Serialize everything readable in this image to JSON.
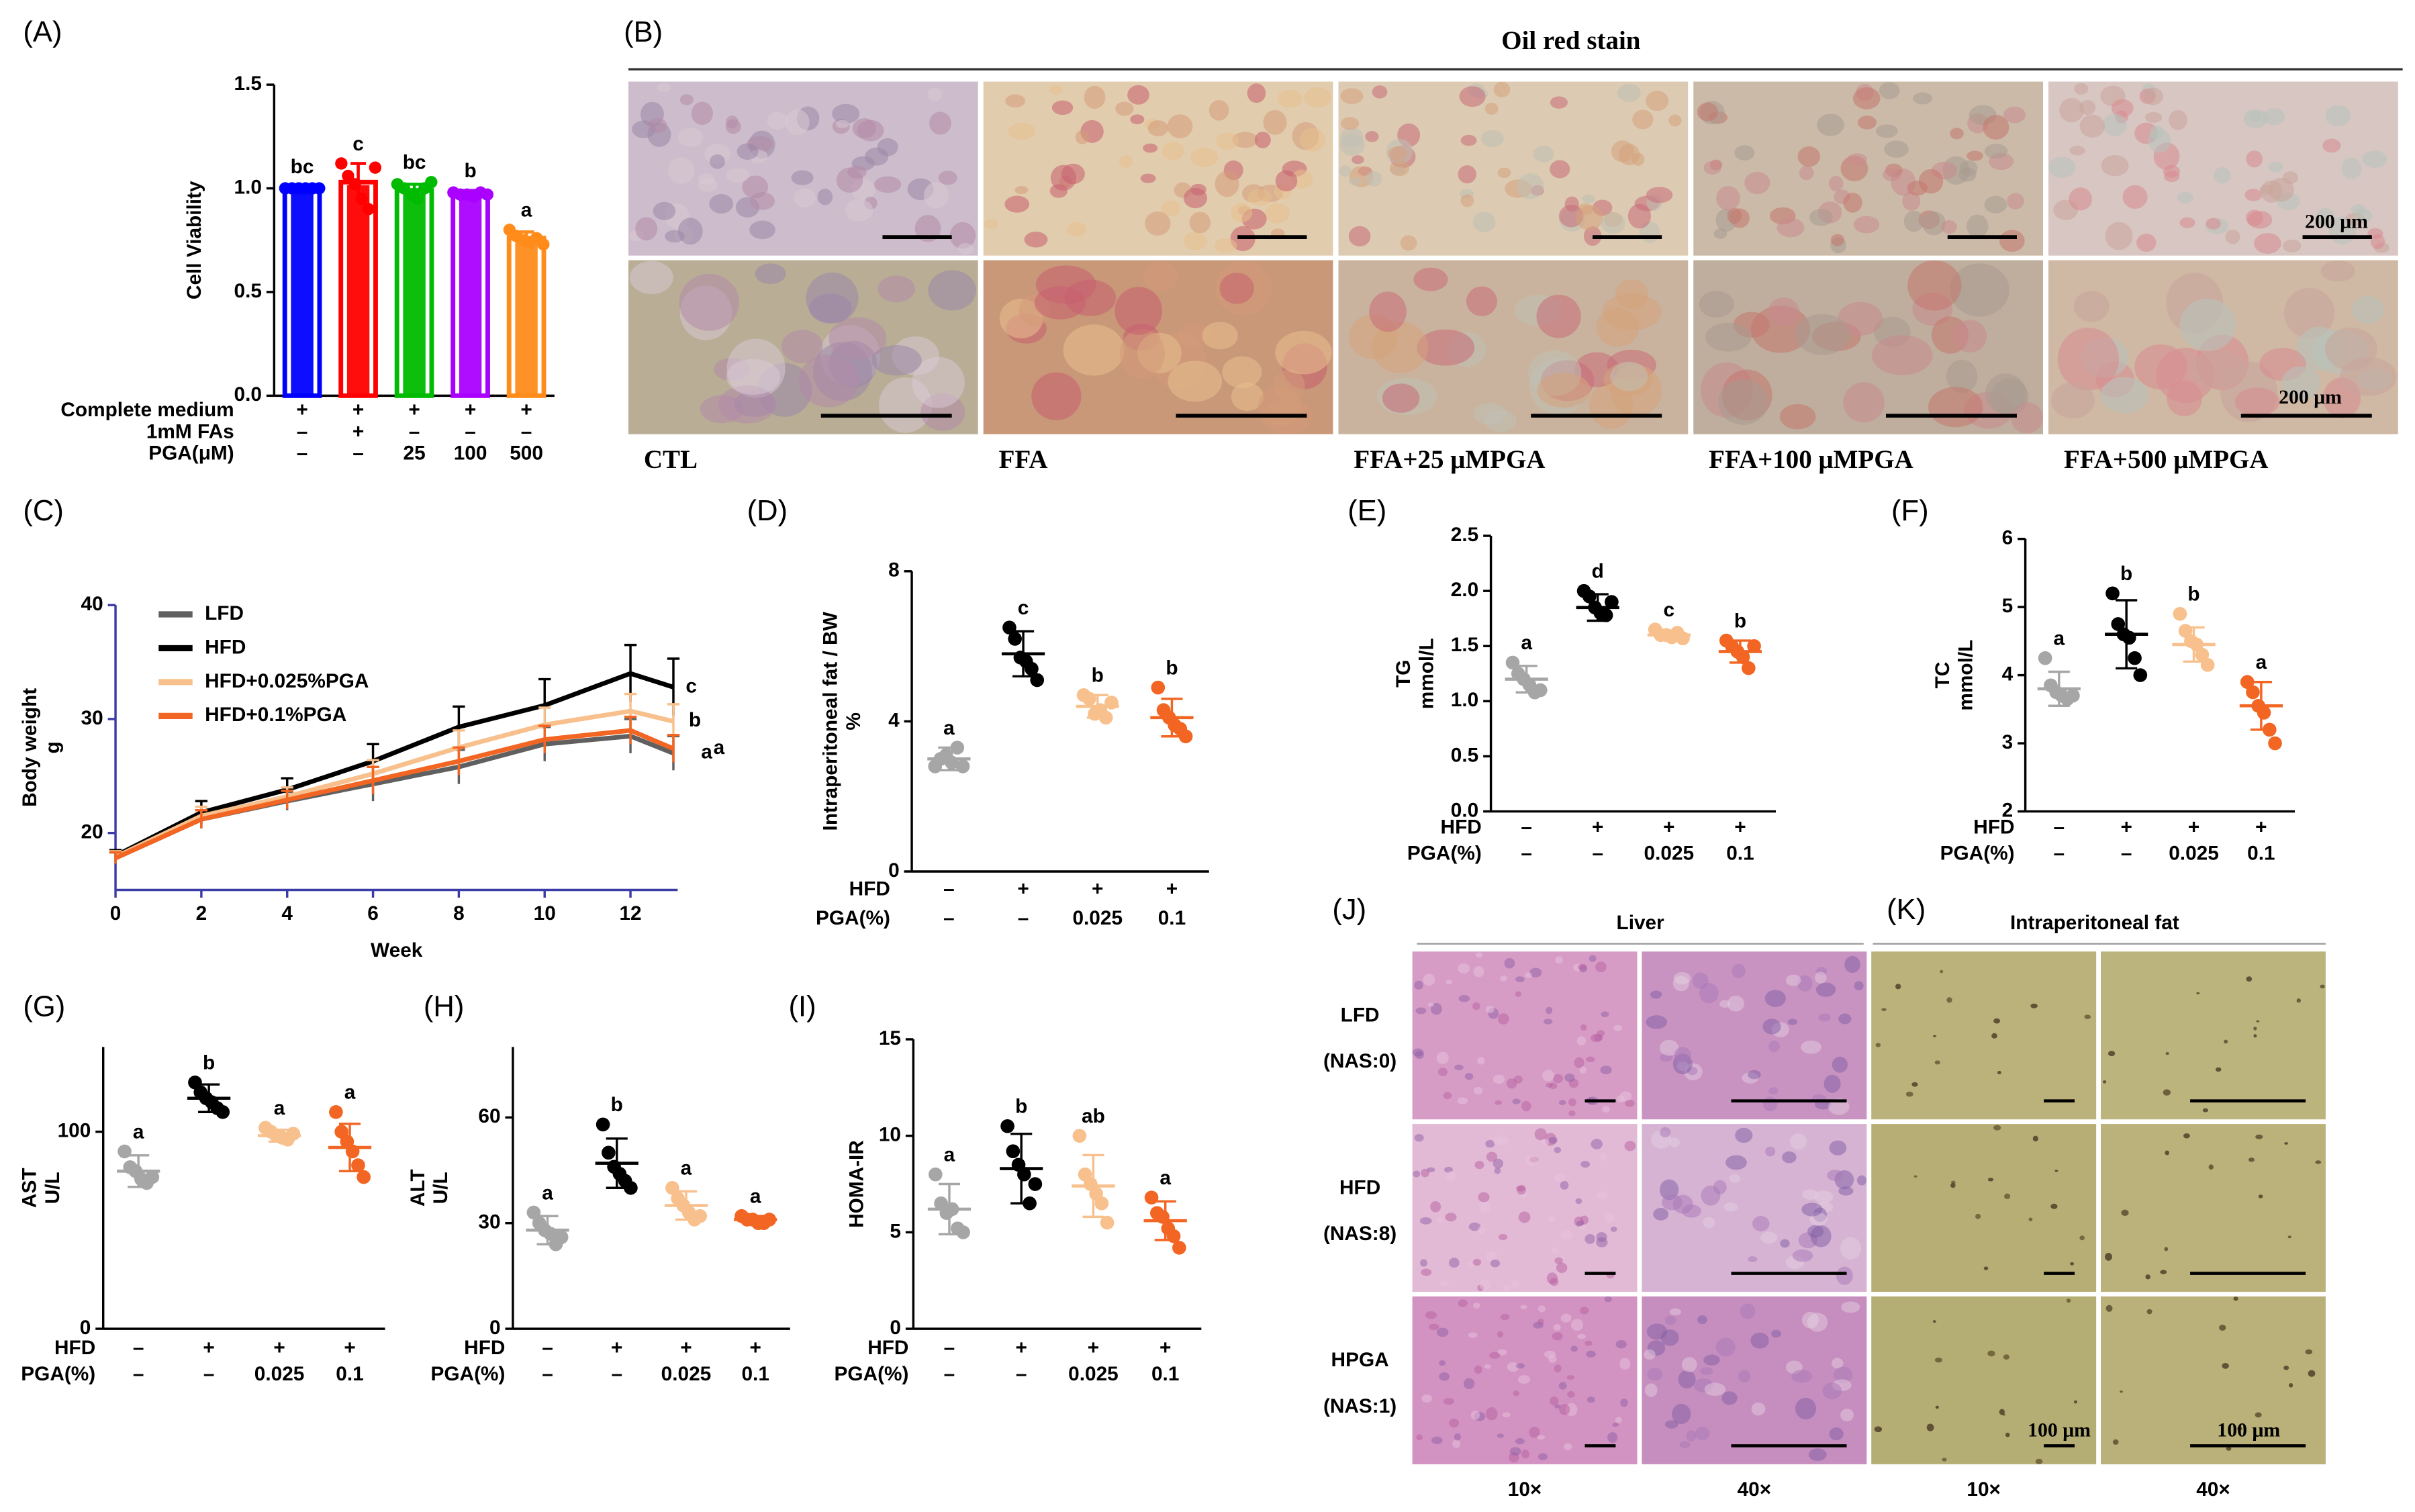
{
  "chart_data": [
    {
      "panel_label": "(A)",
      "type": "bar",
      "ylabel": [
        "Cell Viability"
      ],
      "ylim": [
        0,
        1.5
      ],
      "yticks": [
        {
          "value": 0,
          "label": "0.0"
        },
        0.5,
        {
          "value": 1,
          "label": "1.0"
        },
        1.5
      ],
      "group_rows": [
        {
          "label": "Complete medium",
          "cells": [
            "+",
            "+",
            "+",
            "+",
            "+"
          ]
        },
        {
          "label": "1mM FAs",
          "cells": [
            "–",
            "+",
            "–",
            "–",
            "–"
          ]
        },
        {
          "label": "PGA(μM)",
          "cells": [
            "–",
            "–",
            "25",
            "100",
            "500"
          ]
        }
      ],
      "colors": [
        "#0000ff",
        "#ff0000",
        "#00bb00",
        "#aa00ff",
        "#ff8c1a"
      ],
      "values": [
        1.0,
        1.03,
        0.99,
        0.97,
        0.76
      ],
      "errors": [
        0.01,
        0.09,
        0.03,
        0.02,
        0.03
      ],
      "points": [
        [
          1.0,
          1.0,
          1.0,
          1.0,
          1.0,
          1.0
        ],
        [
          1.12,
          1.06,
          1.02,
          0.95,
          0.9,
          1.1
        ],
        [
          1.02,
          1.0,
          0.97,
          0.95,
          1.0,
          1.03
        ],
        [
          0.98,
          0.97,
          0.97,
          0.96,
          0.98,
          0.97
        ],
        [
          0.8,
          0.77,
          0.75,
          0.74,
          0.76,
          0.73
        ]
      ],
      "letters": [
        "bc",
        "c",
        "bc",
        "b",
        "a"
      ]
    },
    {
      "panel_label": "(C)",
      "type": "line",
      "ylabel": [
        "Body weight",
        "g"
      ],
      "xlabel": "Week",
      "x": [
        0,
        2,
        4,
        6,
        8,
        10,
        12,
        13
      ],
      "xlim": [
        0,
        13.1
      ],
      "xticks": [
        0,
        2,
        4,
        6,
        8,
        10,
        12
      ],
      "ylim": [
        15,
        40
      ],
      "yticks": [
        20,
        30,
        40
      ],
      "axis_color": "#3b3ba8",
      "legend": "upper left",
      "series": [
        {
          "name": "LFD",
          "color": "#606060",
          "values": [
            17.8,
            21.2,
            22.8,
            24.3,
            25.8,
            27.8,
            28.5,
            27.0
          ],
          "errors": [
            0.5,
            0.8,
            0.8,
            1.5,
            1.5,
            1.5,
            1.5,
            1.5
          ],
          "letter": "a"
        },
        {
          "name": "HFD",
          "color": "#000000",
          "values": [
            18.0,
            21.8,
            23.8,
            26.3,
            29.3,
            31.2,
            34.0,
            32.8
          ],
          "errors": [
            0.5,
            1.0,
            1.0,
            1.5,
            1.8,
            2.3,
            2.5,
            2.5
          ],
          "letter": "c"
        },
        {
          "name": "HFD+0.025%PGA",
          "color": "#f7c08c",
          "values": [
            17.9,
            21.5,
            23.2,
            25.2,
            27.5,
            29.5,
            30.7,
            29.8
          ],
          "errors": [
            0.5,
            0.8,
            0.8,
            1.2,
            1.5,
            1.5,
            1.5,
            1.5
          ],
          "letter": "b"
        },
        {
          "name": "HFD+0.1%PGA",
          "color": "#f26522",
          "values": [
            17.8,
            21.2,
            22.9,
            24.6,
            26.3,
            28.2,
            29.0,
            27.4
          ],
          "errors": [
            0.5,
            0.8,
            0.8,
            1.2,
            1.2,
            1.2,
            1.2,
            1.2
          ],
          "letter": "a"
        }
      ]
    },
    {
      "panel_label": "(D)",
      "type": "dot",
      "ylabel": [
        "Intraperitoneal fat / BW",
        "%"
      ],
      "ylim": [
        0,
        8
      ],
      "yticks": [
        0,
        4,
        8
      ],
      "group_rows": [
        {
          "label": "HFD",
          "cells": [
            "–",
            "+",
            "+",
            "+"
          ]
        },
        {
          "label": "PGA(%)",
          "cells": [
            "–",
            "–",
            "0.025",
            "0.1"
          ]
        }
      ],
      "colors": [
        "#a6a6a6",
        "#000000",
        "#f7c08c",
        "#f26522"
      ],
      "means": [
        3.0,
        5.8,
        4.4,
        4.1
      ],
      "sds": [
        0.3,
        0.6,
        0.3,
        0.5
      ],
      "points": [
        [
          2.8,
          3.0,
          3.1,
          2.9,
          3.3,
          2.8
        ],
        [
          6.5,
          6.2,
          5.7,
          5.6,
          5.4,
          5.1
        ],
        [
          4.7,
          4.6,
          4.2,
          4.3,
          4.1,
          4.5
        ],
        [
          4.9,
          4.3,
          4.1,
          3.9,
          3.8,
          3.6
        ]
      ],
      "letters": [
        "a",
        "c",
        "b",
        "b"
      ]
    },
    {
      "panel_label": "(E)",
      "type": "dot",
      "ylabel": [
        "TG",
        "mmol/L"
      ],
      "ylim": [
        0,
        2.5
      ],
      "yticks": [
        {
          "value": 0,
          "label": "0.0"
        },
        0.5,
        {
          "value": 1,
          "label": "1.0"
        },
        1.5,
        {
          "value": 2,
          "label": "2.0"
        },
        2.5
      ],
      "group_rows": [
        {
          "label": "HFD",
          "cells": [
            "–",
            "+",
            "+",
            "+"
          ]
        },
        {
          "label": "PGA(%)",
          "cells": [
            "–",
            "–",
            "0.025",
            "0.1"
          ]
        }
      ],
      "colors": [
        "#a6a6a6",
        "#000000",
        "#f7c08c",
        "#f26522"
      ],
      "means": [
        1.2,
        1.85,
        1.6,
        1.45
      ],
      "sds": [
        0.12,
        0.12,
        0.04,
        0.1
      ],
      "points": [
        [
          1.35,
          1.25,
          1.2,
          1.15,
          1.08,
          1.1
        ],
        [
          2.0,
          1.95,
          1.85,
          1.8,
          1.78,
          1.9
        ],
        [
          1.65,
          1.6,
          1.6,
          1.58,
          1.62,
          1.57
        ],
        [
          1.55,
          1.5,
          1.45,
          1.4,
          1.3,
          1.5
        ]
      ],
      "letters": [
        "a",
        "d",
        "c",
        "b"
      ]
    },
    {
      "panel_label": "(F)",
      "type": "dot",
      "ylabel": [
        "TC",
        "mmol/L"
      ],
      "ylim": [
        2,
        6
      ],
      "yticks": [
        2,
        3,
        4,
        5,
        6
      ],
      "group_rows": [
        {
          "label": "HFD",
          "cells": [
            "–",
            "+",
            "+",
            "+"
          ]
        },
        {
          "label": "PGA(%)",
          "cells": [
            "–",
            "–",
            "0.025",
            "0.1"
          ]
        }
      ],
      "colors": [
        "#a6a6a6",
        "#000000",
        "#f7c08c",
        "#f26522"
      ],
      "means": [
        3.8,
        4.6,
        4.45,
        3.55
      ],
      "sds": [
        0.25,
        0.5,
        0.25,
        0.35
      ],
      "points": [
        [
          4.25,
          3.85,
          3.75,
          3.7,
          3.65,
          3.7
        ],
        [
          5.2,
          4.75,
          4.6,
          4.55,
          4.25,
          4.0
        ],
        [
          4.9,
          4.65,
          4.5,
          4.45,
          4.3,
          4.15
        ],
        [
          3.9,
          3.75,
          3.55,
          3.45,
          3.2,
          3.0
        ]
      ],
      "letters": [
        "a",
        "b",
        "b",
        "a"
      ]
    },
    {
      "panel_label": "(G)",
      "type": "dot",
      "ylabel": [
        "AST",
        "U/L"
      ],
      "ylim": [
        0,
        143
      ],
      "yticks": [
        0,
        100
      ],
      "group_rows": [
        {
          "label": "HFD",
          "cells": [
            "–",
            "+",
            "+",
            "+"
          ]
        },
        {
          "label": "PGA(%)",
          "cells": [
            "–",
            "–",
            "0.025",
            "0.1"
          ]
        }
      ],
      "colors": [
        "#a6a6a6",
        "#000000",
        "#f7c08c",
        "#f26522"
      ],
      "means": [
        80,
        117,
        98,
        92
      ],
      "sds": [
        8,
        7,
        3,
        12
      ],
      "points": [
        [
          90,
          82,
          80,
          76,
          74,
          77
        ],
        [
          125,
          120,
          117,
          115,
          112,
          110
        ],
        [
          102,
          100,
          98,
          97,
          96,
          99
        ],
        [
          110,
          100,
          95,
          90,
          83,
          77
        ]
      ],
      "letters": [
        "a",
        "b",
        "a",
        "a"
      ]
    },
    {
      "panel_label": "(H)",
      "type": "dot",
      "ylabel": [
        "ALT",
        "U/L"
      ],
      "ylim": [
        0,
        80
      ],
      "yticks": [
        0,
        30,
        60
      ],
      "group_rows": [
        {
          "label": "HFD",
          "cells": [
            "–",
            "+",
            "+",
            "+"
          ]
        },
        {
          "label": "PGA(%)",
          "cells": [
            "–",
            "–",
            "0.025",
            "0.1"
          ]
        }
      ],
      "colors": [
        "#a6a6a6",
        "#000000",
        "#f7c08c",
        "#f26522"
      ],
      "means": [
        28,
        47,
        35,
        31
      ],
      "sds": [
        4,
        7,
        4,
        1
      ],
      "points": [
        [
          33,
          30,
          28,
          27,
          24,
          26
        ],
        [
          58,
          50,
          46,
          44,
          42,
          40
        ],
        [
          40,
          37,
          35,
          33,
          31,
          32
        ],
        [
          32,
          31,
          31,
          30,
          30,
          31
        ]
      ],
      "letters": [
        "a",
        "b",
        "a",
        "a"
      ]
    },
    {
      "panel_label": "(I)",
      "type": "dot",
      "ylabel": [
        "HOMA-IR"
      ],
      "ylim": [
        0,
        15
      ],
      "yticks": [
        0,
        5,
        10,
        15
      ],
      "group_rows": [
        {
          "label": "HFD",
          "cells": [
            "–",
            "+",
            "+",
            "+"
          ]
        },
        {
          "label": "PGA(%)",
          "cells": [
            "–",
            "–",
            "0.025",
            "0.1"
          ]
        }
      ],
      "colors": [
        "#a6a6a6",
        "#000000",
        "#f7c08c",
        "#f26522"
      ],
      "means": [
        6.2,
        8.3,
        7.4,
        5.6
      ],
      "sds": [
        1.3,
        1.8,
        1.6,
        1.0
      ],
      "points": [
        [
          8,
          6.5,
          6,
          6.2,
          5.2,
          5
        ],
        [
          10.5,
          9.2,
          8.5,
          8,
          6.5,
          7.5
        ],
        [
          10,
          8,
          7.5,
          7,
          6.5,
          5.5
        ],
        [
          6.8,
          6,
          5.8,
          5.2,
          4.8,
          4.2
        ]
      ],
      "letters": [
        "a",
        "b",
        "ab",
        "a"
      ]
    }
  ],
  "oil_red_panel": {
    "panel_label": "(B)",
    "title": "Oil red stain",
    "groups": [
      "CTL",
      "FFA",
      "FFA+25 μMPGA",
      "FFA+100 μMPGA",
      "FFA+500 μMPGA"
    ],
    "scale_bars": [
      "200 μm",
      "200 μm"
    ]
  },
  "histology_panels": {
    "liver": {
      "panel_label": "(J)",
      "title": "Liver"
    },
    "fat": {
      "panel_label": "(K)",
      "title": "Intraperitoneal fat"
    },
    "rows": [
      {
        "group": "LFD",
        "score": "(NAS:0)"
      },
      {
        "group": "HFD",
        "score": "(NAS:8)"
      },
      {
        "group": "HPGA",
        "score": "(NAS:1)"
      }
    ],
    "magnifications": [
      "10×",
      "40×",
      "10×",
      "40×"
    ],
    "scale_bars": [
      "100 μm",
      "100 μm"
    ]
  }
}
